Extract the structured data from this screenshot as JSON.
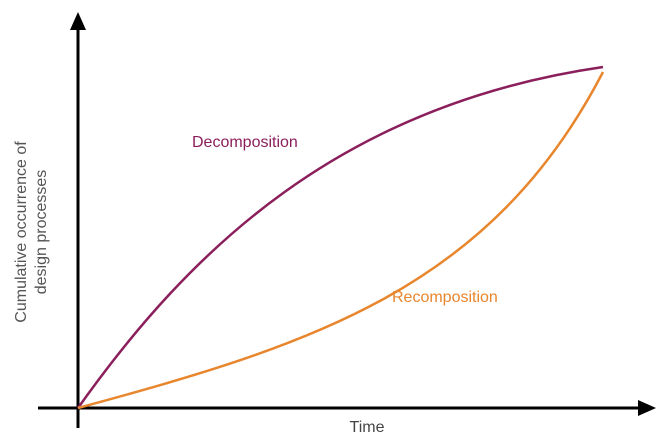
{
  "y_axis_label": {
    "line1": "Cumulative occurrence of",
    "line2": "design processes"
  },
  "x_axis_label": "Time",
  "curves": [
    {
      "label": "Decomposition",
      "color": "#8b1f5c"
    },
    {
      "label": "Recomposition",
      "color": "#e8862e"
    }
  ]
}
